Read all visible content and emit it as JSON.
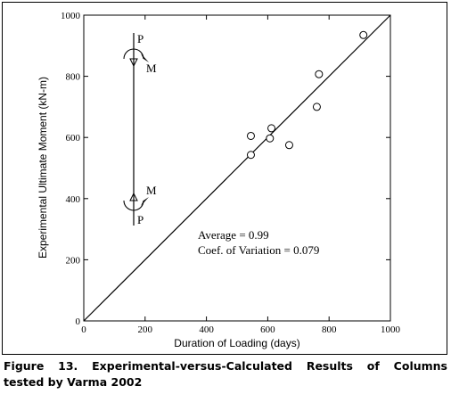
{
  "chart_data": {
    "type": "scatter",
    "title": "",
    "xlabel": "Duration of Loading (days)",
    "ylabel": "Experimental Ultimate Moment (kN-m)",
    "xlim": [
      0,
      1000
    ],
    "ylim": [
      0,
      1000
    ],
    "xticks": [
      "0",
      "200",
      "400",
      "600",
      "800",
      "1000"
    ],
    "yticks": [
      "0",
      "200",
      "400",
      "600",
      "800",
      "1000"
    ],
    "grid": false,
    "reference_line": {
      "x": [
        0,
        1000
      ],
      "y": [
        0,
        1000
      ]
    },
    "points": [
      {
        "x": 545,
        "y": 543
      },
      {
        "x": 545,
        "y": 605
      },
      {
        "x": 607,
        "y": 597
      },
      {
        "x": 612,
        "y": 630
      },
      {
        "x": 670,
        "y": 575
      },
      {
        "x": 760,
        "y": 700
      },
      {
        "x": 767,
        "y": 807
      },
      {
        "x": 912,
        "y": 935
      }
    ],
    "annotations": {
      "average": "Average = 0.99",
      "cov": "Coef. of Variation = 0.079"
    },
    "inset": {
      "top_load": "P",
      "top_moment": "M",
      "bottom_moment": "M",
      "bottom_load": "P"
    }
  },
  "caption": {
    "line1": "Figure 13. Experimental-versus-Calculated Results of Columns",
    "line2": "tested by Varma 2002"
  }
}
